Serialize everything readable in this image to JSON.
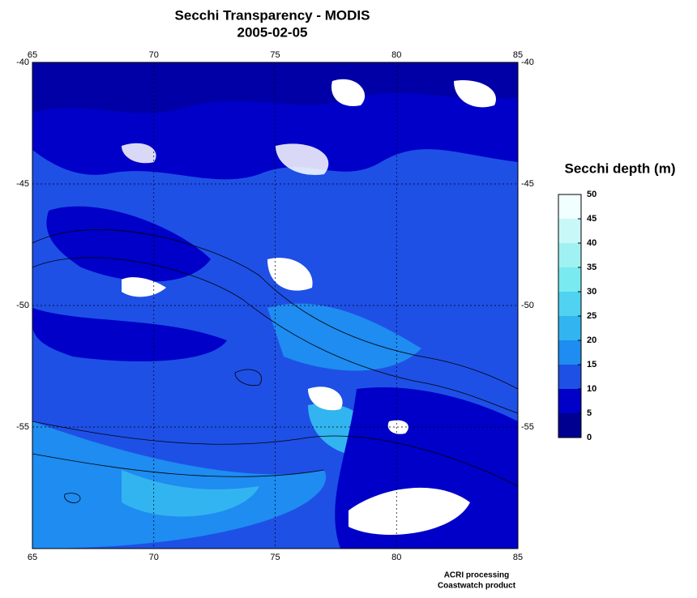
{
  "map": {
    "title": "Secchi Transparency - MODIS",
    "subtitle": "2005-02-05",
    "xlim": [
      65,
      85
    ],
    "ylim": [
      -60,
      -40
    ],
    "xticks": [
      65,
      70,
      75,
      80,
      85
    ],
    "yticks": [
      -40,
      -45,
      -50,
      -55
    ],
    "grid": true,
    "colorbar": {
      "title": "Secchi depth (m)",
      "ticks": [
        0,
        5,
        10,
        15,
        20,
        25,
        30,
        35,
        40,
        45,
        50
      ],
      "colors": [
        "#000090",
        "#0000c8",
        "#1e50e6",
        "#1e8cf0",
        "#32b4f0",
        "#50d2f0",
        "#78eaf0",
        "#a0f2f2",
        "#c8f8f8",
        "#f0ffff"
      ]
    },
    "credits": [
      "ACRI processing",
      "Coastwatch product"
    ]
  }
}
